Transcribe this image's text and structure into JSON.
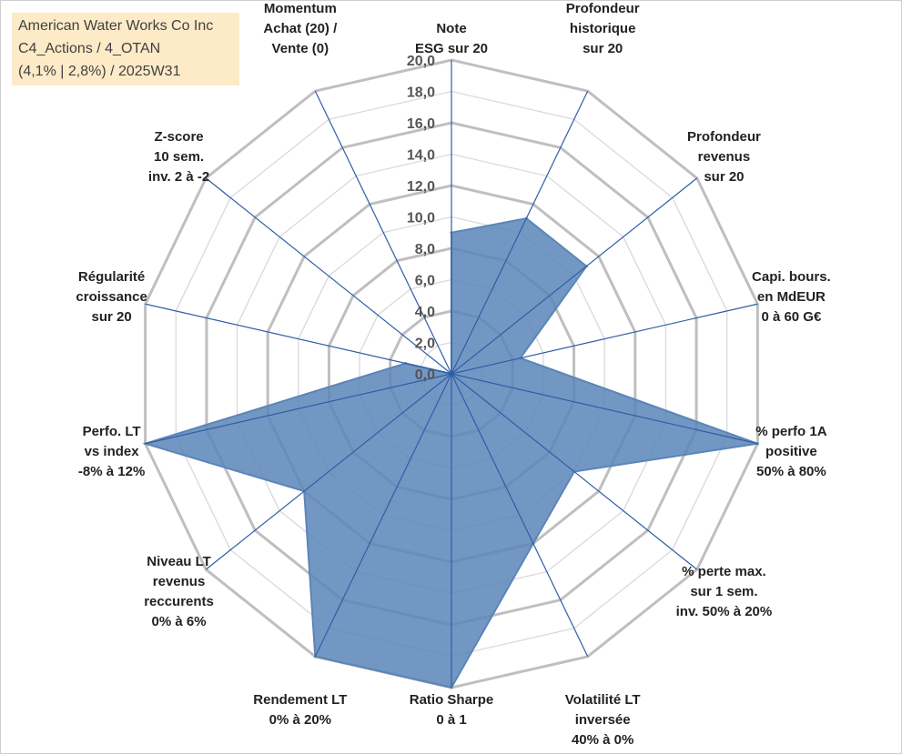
{
  "title_box": {
    "line1": "American Water Works Co Inc",
    "line2": "C4_Actions / 4_OTAN",
    "line3": "(4,1% | 2,8%) / 2025W31"
  },
  "colors": {
    "fill": "#5b85b8",
    "axis_line": "#2e5ea8",
    "grid_outer": "#bfbfbf",
    "grid_inner": "#d9d9d9"
  },
  "chart_data": {
    "type": "radar",
    "rmax": 20,
    "tick_step": 2,
    "tick_labels": [
      "0,0",
      "2,0",
      "4,0",
      "6,0",
      "8,0",
      "10,0",
      "12,0",
      "14,0",
      "16,0",
      "18,0",
      "20,0"
    ],
    "axes": [
      {
        "label": [
          "Note",
          "ESG sur 20"
        ],
        "value": 9
      },
      {
        "label": [
          "Profondeur",
          "historique",
          "sur 20"
        ],
        "value": 11
      },
      {
        "label": [
          "Profondeur",
          "revenus",
          "sur 20"
        ],
        "value": 11
      },
      {
        "label": [
          "Capi. bours.",
          "en MdEUR",
          "0 à 60 G€"
        ],
        "value": 4.5
      },
      {
        "label": [
          "% perfo 1A",
          "positive",
          "50% à 80%"
        ],
        "value": 20
      },
      {
        "label": [
          "% perte max.",
          "sur 1 sem.",
          "inv. 50% à 20%"
        ],
        "value": 10
      },
      {
        "label": [
          "Volatilité LT",
          "inversée",
          "40% à 0%"
        ],
        "value": 12
      },
      {
        "label": [
          "Ratio Sharpe",
          "0 à 1"
        ],
        "value": 20
      },
      {
        "label": [
          "Rendement LT",
          "0% à 20%"
        ],
        "value": 20
      },
      {
        "label": [
          "Niveau LT",
          "revenus",
          "reccurents",
          "0% à 6%"
        ],
        "value": 12
      },
      {
        "label": [
          "Perfo. LT",
          "vs index",
          "-8% à 12%"
        ],
        "value": 20
      },
      {
        "label": [
          "Régularité",
          "croissance",
          "sur 20"
        ],
        "value": 3
      },
      {
        "label": [
          "Z-score",
          "10 sem.",
          "inv. 2 à -2"
        ],
        "value": 0
      },
      {
        "label": [
          "Momentum",
          "Achat (20) /",
          "Vente (0)"
        ],
        "value": 0
      }
    ]
  }
}
